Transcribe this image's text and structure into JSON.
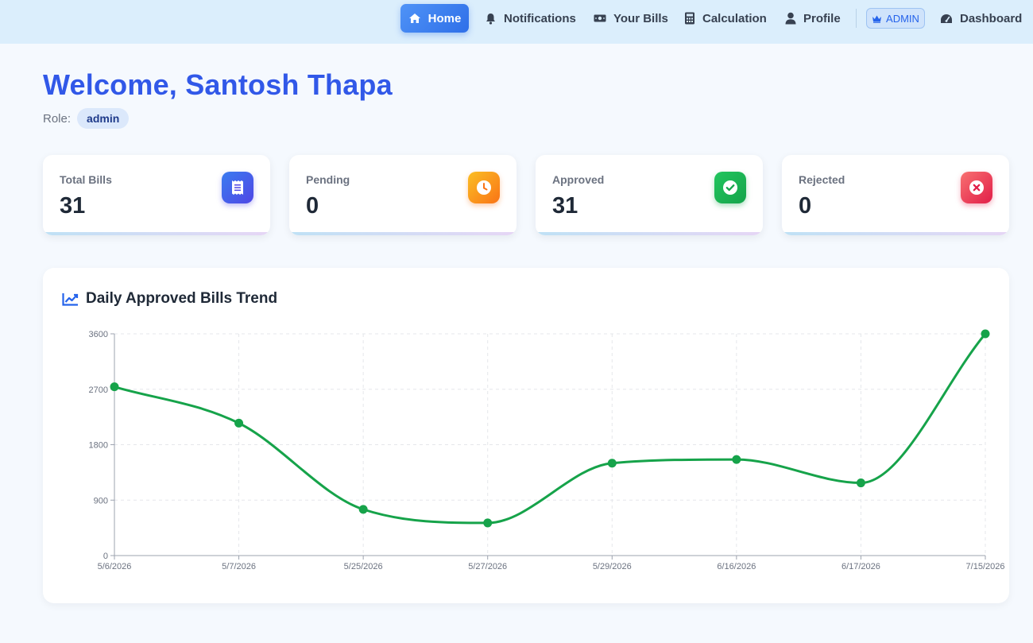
{
  "nav": {
    "home": "Home",
    "notifications": "Notifications",
    "bills": "Your Bills",
    "calculation": "Calculation",
    "profile": "Profile",
    "admin_badge": "ADMIN",
    "dashboard": "Dashboard"
  },
  "header": {
    "welcome": "Welcome, Santosh Thapa",
    "role_label": "Role:",
    "role_value": "admin"
  },
  "stats": [
    {
      "label": "Total Bills",
      "value": "31",
      "icon": "receipt-icon",
      "color": "#4f46e5"
    },
    {
      "label": "Pending",
      "value": "0",
      "icon": "clock-icon",
      "color": "#f97316"
    },
    {
      "label": "Approved",
      "value": "31",
      "icon": "check-circle-icon",
      "color": "#16a34a"
    },
    {
      "label": "Rejected",
      "value": "0",
      "icon": "x-circle-icon",
      "color": "#e11d48"
    }
  ],
  "chart_card": {
    "title": "Daily Approved Bills Trend",
    "icon": "chart-line-icon"
  },
  "colors": {
    "accent": "#2f6fe8",
    "line": "#16a34a",
    "title": "#3158e8"
  },
  "chart_data": {
    "type": "line",
    "title": "Daily Approved Bills Trend",
    "xlabel": "",
    "ylabel": "",
    "categories": [
      "5/6/2026",
      "5/7/2026",
      "5/25/2026",
      "5/27/2026",
      "5/29/2026",
      "6/16/2026",
      "6/17/2026",
      "7/15/2026"
    ],
    "values": [
      2740,
      2150,
      750,
      530,
      1500,
      1560,
      1180,
      3600
    ],
    "ylim": [
      0,
      3600
    ],
    "yticks": [
      0,
      900,
      1800,
      2700,
      3600
    ],
    "grid": true,
    "legend": "none"
  }
}
